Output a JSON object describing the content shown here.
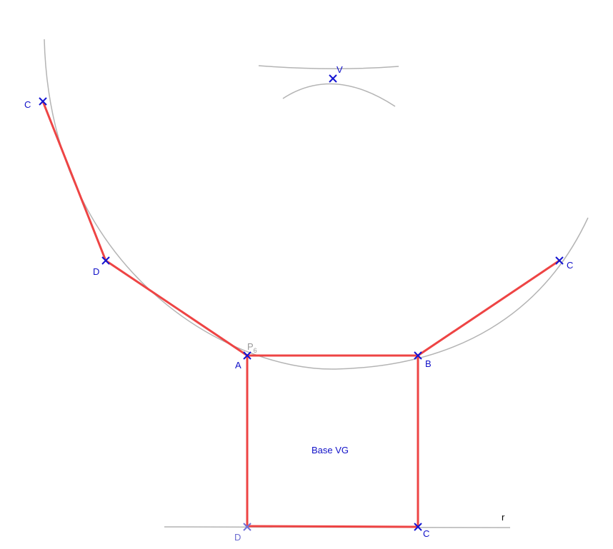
{
  "points": {
    "A": "A",
    "B": "B",
    "C_bottom": "C",
    "D_bottom": "D",
    "C_right": "C",
    "D_left": "D",
    "C_left": "C",
    "V": "V",
    "p6_base": "P",
    "p6_sub": "6"
  },
  "labels": {
    "face": "Base VG",
    "line": "r"
  },
  "colors": {
    "edge": "#ee4444",
    "point": "#1414d2",
    "construction": "#b4b4b4",
    "label": "#1010c8"
  }
}
